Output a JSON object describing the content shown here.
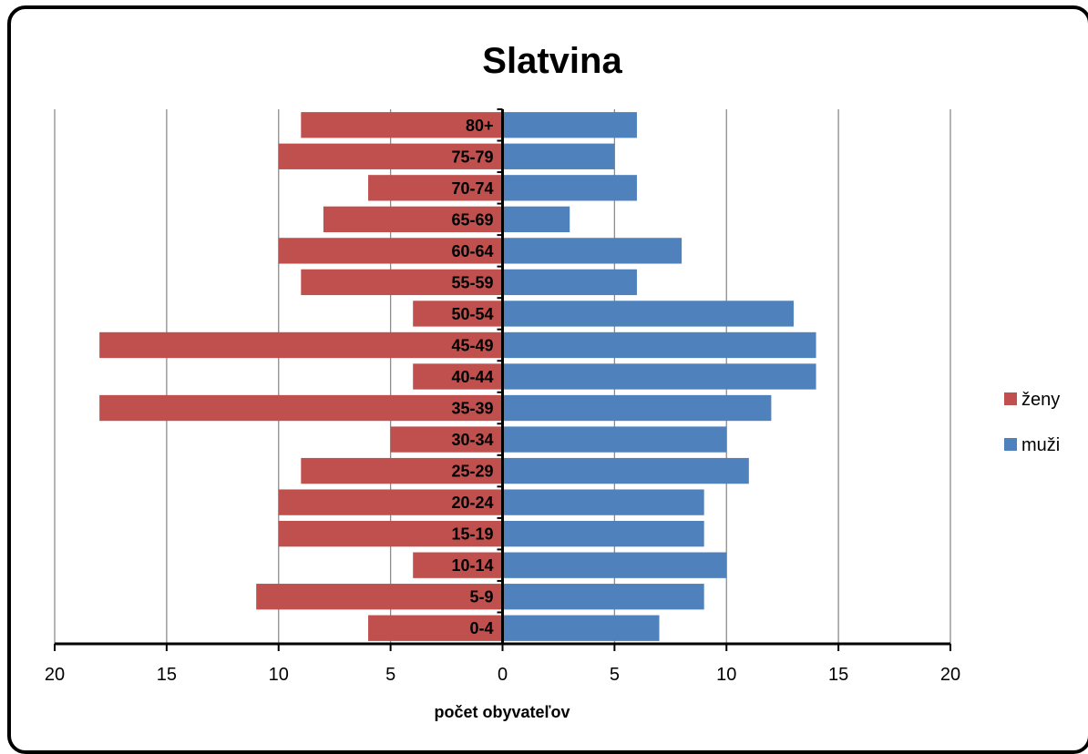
{
  "chart_data": {
    "type": "bar",
    "orientation": "horizontal",
    "title": "Slatvina",
    "xlabel": "počet obyvateľov",
    "ylabel": "",
    "categories": [
      "0-4",
      "5-9",
      "10-14",
      "15-19",
      "20-24",
      "25-29",
      "30-34",
      "35-39",
      "40-44",
      "45-49",
      "50-54",
      "55-59",
      "60-64",
      "65-69",
      "70-74",
      "75-79",
      "80+"
    ],
    "series": [
      {
        "name": "ženy",
        "color": "#c0504d",
        "values": [
          6,
          11,
          4,
          10,
          10,
          9,
          5,
          18,
          4,
          18,
          4,
          9,
          10,
          8,
          6,
          10,
          9
        ]
      },
      {
        "name": "muži",
        "color": "#4f81bd",
        "values": [
          7,
          9,
          10,
          9,
          9,
          11,
          10,
          12,
          14,
          14,
          13,
          6,
          8,
          3,
          6,
          5,
          6
        ]
      }
    ],
    "xlim": [
      -20,
      20
    ],
    "xticks": [
      -20,
      -15,
      -10,
      -5,
      0,
      5,
      10,
      15,
      20
    ],
    "xtick_labels": [
      "20",
      "15",
      "10",
      "5",
      "0",
      "5",
      "10",
      "15",
      "20"
    ],
    "grid": true,
    "legend": "right"
  }
}
